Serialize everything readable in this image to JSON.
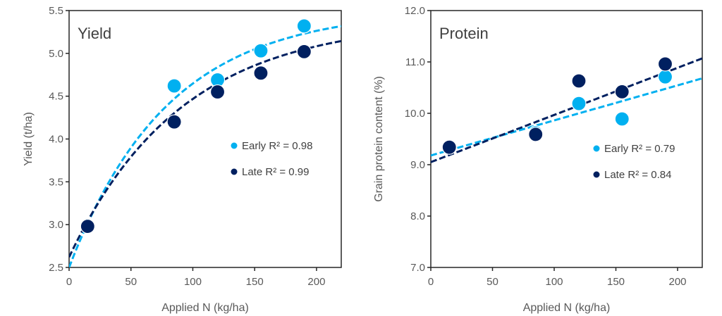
{
  "chart_data": [
    {
      "type": "scatter",
      "title": "Yield",
      "xlabel": "Applied N (kg/ha)",
      "ylabel": "Yield (t/ha)",
      "xlim": [
        0,
        220
      ],
      "ylim": [
        2.5,
        5.5
      ],
      "xticks": [
        0,
        50,
        100,
        150,
        200
      ],
      "yticks": [
        2.5,
        3.0,
        3.5,
        4.0,
        4.5,
        5.0,
        5.5
      ],
      "ytick_decimals": 1,
      "grid": false,
      "legend_position": "center-right",
      "series": [
        {
          "name": "Early",
          "legend": "Early R² = 0.98",
          "color": "#00B0F0",
          "x": [
            15,
            85,
            120,
            155,
            190
          ],
          "y": [
            2.99,
            4.62,
            4.69,
            5.03,
            5.32
          ],
          "trendline": {
            "type": "exponential-rise",
            "a": 5.51,
            "b": 3.01,
            "c": 0.0125
          }
        },
        {
          "name": "Late",
          "legend": "Late R² = 0.99",
          "color": "#002060",
          "x": [
            15,
            85,
            120,
            155,
            190
          ],
          "y": [
            2.98,
            4.2,
            4.55,
            4.77,
            5.02
          ],
          "trendline": {
            "type": "exponential-rise",
            "a": 5.39,
            "b": 2.77,
            "c": 0.011
          }
        }
      ]
    },
    {
      "type": "scatter",
      "title": "Protein",
      "xlabel": "Applied N (kg/ha)",
      "ylabel": "Grain protein content (%)",
      "xlim": [
        0,
        220
      ],
      "ylim": [
        7.0,
        12.0
      ],
      "xticks": [
        0,
        50,
        100,
        150,
        200
      ],
      "yticks": [
        7.0,
        8.0,
        9.0,
        10.0,
        11.0,
        12.0
      ],
      "ytick_decimals": 1,
      "grid": false,
      "legend_position": "center-right",
      "series": [
        {
          "name": "Early",
          "legend": "Early R² = 0.79",
          "color": "#00B0F0",
          "x": [
            15,
            85,
            120,
            155,
            190
          ],
          "y": [
            9.34,
            9.62,
            10.19,
            9.89,
            10.71
          ],
          "trendline": {
            "type": "linear",
            "intercept": 9.18,
            "slope": 0.00682
          }
        },
        {
          "name": "Late",
          "legend": "Late R² = 0.84",
          "color": "#002060",
          "x": [
            15,
            85,
            120,
            155,
            190
          ],
          "y": [
            9.34,
            9.59,
            10.63,
            10.42,
            10.96
          ],
          "trendline": {
            "type": "linear",
            "intercept": 9.05,
            "slope": 0.00918
          }
        }
      ]
    }
  ]
}
